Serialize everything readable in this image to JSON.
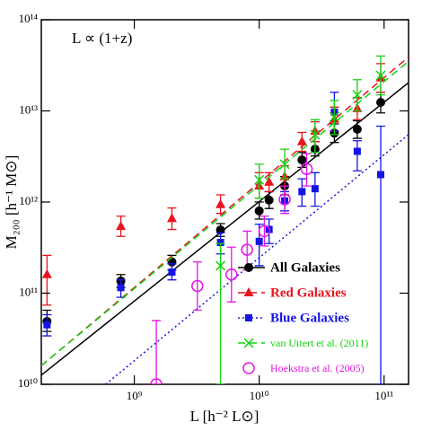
{
  "chart_data": {
    "type": "scatter",
    "annotation": "L ∝ (1+z)",
    "x_label": "L [h⁻² L⊙]",
    "y_label": "M₂₀₀ [h⁻¹ M⊙]",
    "log_x": true,
    "log_y": true,
    "xlim": [
      180000000.0,
      157000000000.0
    ],
    "ylim": [
      10000000000.0,
      100000000000000.0
    ],
    "xticks": [
      {
        "value": 1000000000.0,
        "label": "10⁹"
      },
      {
        "value": 10000000000.0,
        "label": "10¹⁰"
      },
      {
        "value": 100000000000.0,
        "label": "10¹¹"
      }
    ],
    "yticks": [
      {
        "value": 10000000000.0,
        "label": "10¹⁰"
      },
      {
        "value": 100000000000.0,
        "label": "10¹¹"
      },
      {
        "value": 1000000000000.0,
        "label": "10¹²"
      },
      {
        "value": 10000000000000.0,
        "label": "10¹³"
      },
      {
        "value": 100000000000000.0,
        "label": "10¹⁴"
      }
    ],
    "legend": "lower right",
    "series": [
      {
        "name": "All Galaxies",
        "color": "#000000",
        "marker": "circle",
        "line_style": "solid",
        "x": [
          200000000.0,
          780000000.0,
          2000000000.0,
          4900000000.0,
          10000000000.0,
          12000000000.0,
          16000000000.0,
          22000000000.0,
          28000000000.0,
          40000000000.0,
          61000000000.0,
          94000000000.0
        ],
        "values": [
          49000000000.0,
          136000000000.0,
          220000000000.0,
          495000000000.0,
          800000000000.0,
          1050000000000.0,
          1500000000000.0,
          2900000000000.0,
          3800000000000.0,
          5700000000000.0,
          6300000000000.0,
          12400000000000.0
        ],
        "yerr_low": [
          38000000000.0,
          115000000000.0,
          180000000000.0,
          420000000000.0,
          650000000000.0,
          850000000000.0,
          1200000000000.0,
          2400000000000.0,
          3200000000000.0,
          4500000000000.0,
          5000000000000.0,
          9500000000000.0
        ],
        "yerr_high": [
          65000000000.0,
          160000000000.0,
          260000000000.0,
          580000000000.0,
          1000000000000.0,
          1300000000000.0,
          1900000000000.0,
          3500000000000.0,
          4600000000000.0,
          7200000000000.0,
          7800000000000.0,
          16000000000000.0
        ],
        "fit": {
          "x": [
            180000000.0,
            157000000000.0
          ],
          "y": [
            12600000000.0,
            20400000000000.0
          ]
        }
      },
      {
        "name": "Red Galaxies",
        "color": "#e8141e",
        "marker": "triangle",
        "line_style": "dashed",
        "x": [
          200000000.0,
          780000000.0,
          2000000000.0,
          4900000000.0,
          10000000000.0,
          12000000000.0,
          16000000000.0,
          22000000000.0,
          28000000000.0,
          40000000000.0,
          61000000000.0,
          94000000000.0
        ],
        "values": [
          160000000000.0,
          540000000000.0,
          660000000000.0,
          940000000000.0,
          1500000000000.0,
          1650000000000.0,
          1900000000000.0,
          4600000000000.0,
          6000000000000.0,
          8100000000000.0,
          10600000000000.0,
          23000000000000.0
        ],
        "yerr_low": [
          74000000000.0,
          420000000000.0,
          500000000000.0,
          750000000000.0,
          1100000000000.0,
          1300000000000.0,
          1500000000000.0,
          3600000000000.0,
          4600000000000.0,
          6000000000000.0,
          8000000000000.0,
          16000000000000.0
        ],
        "yerr_high": [
          260000000000.0,
          700000000000.0,
          860000000000.0,
          1200000000000.0,
          2100000000000.0,
          2100000000000.0,
          2500000000000.0,
          5800000000000.0,
          7600000000000.0,
          11000000000000.0,
          14000000000000.0,
          33000000000000.0
        ],
        "fit": {
          "x": [
            180000000.0,
            157000000000.0
          ],
          "y": [
            16000000000.0,
            39000000000000.0
          ]
        }
      },
      {
        "name": "Blue Galaxies",
        "color": "#1414e6",
        "marker": "square",
        "line_style": "dotted",
        "x": [
          200000000.0,
          780000000.0,
          2000000000.0,
          4900000000.0,
          10000000000.0,
          12000000000.0,
          16000000000.0,
          22000000000.0,
          28000000000.0,
          40000000000.0,
          61000000000.0,
          94000000000.0
        ],
        "values": [
          45000000000.0,
          115000000000.0,
          170000000000.0,
          360000000000.0,
          370000000000.0,
          500000000000.0,
          1030000000000.0,
          1300000000000.0,
          1400000000000.0,
          9700000000000.0,
          3600000000000.0,
          2000000000000.0
        ],
        "yerr_low": [
          34000000000.0,
          90000000000.0,
          140000000000.0,
          270000000000.0,
          200000000000.0,
          350000000000.0,
          800000000000.0,
          900000000000.0,
          900000000000.0,
          6000000000000.0,
          2200000000000.0,
          10000000000.0
        ],
        "yerr_high": [
          58000000000.0,
          140000000000.0,
          210000000000.0,
          460000000000.0,
          570000000000.0,
          650000000000.0,
          1300000000000.0,
          1800000000000.0,
          2100000000000.0,
          16000000000000.0,
          4700000000000.0,
          6800000000000.0
        ],
        "fit": {
          "x": [
            590000000.0,
            157000000000.0
          ],
          "y": [
            10000000000.0,
            5500000000000.0
          ]
        }
      },
      {
        "name": "van Uitert et al. (2011)",
        "color": "#14d214",
        "marker": "x",
        "line_style": "dashed",
        "x": [
          4900000000.0,
          10000000000.0,
          16000000000.0,
          28000000000.0,
          40000000000.0,
          61000000000.0,
          94000000000.0
        ],
        "values": [
          200000000000.0,
          1750000000000.0,
          2600000000000.0,
          5500000000000.0,
          8600000000000.0,
          15000000000000.0,
          24500000000000.0
        ],
        "yerr_low": [
          10000000000.0,
          1100000000000.0,
          1800000000000.0,
          3500000000000.0,
          5500000000000.0,
          10000000000000.0,
          15000000000000.0
        ],
        "yerr_high": [
          350000000000.0,
          2600000000000.0,
          3800000000000.0,
          8000000000000.0,
          13000000000000.0,
          22000000000000.0,
          40000000000000.0
        ],
        "fit": {
          "x": [
            180000000.0,
            157000000000.0
          ],
          "y": [
            16000000000.0,
            35000000000000.0
          ]
        }
      },
      {
        "name": "Hoekstra et al. (2005)",
        "color": "#e614e6",
        "marker": "open-circle",
        "x": [
          1500000000.0,
          3200000000.0,
          6000000000.0,
          8000000000.0,
          11000000000.0,
          16000000000.0,
          24000000000.0
        ],
        "values": [
          10000000000.0,
          120000000000.0,
          160000000000.0,
          300000000000.0,
          480000000000.0,
          1070000000000.0,
          2300000000000.0
        ],
        "yerr_low": [
          10000000000.0,
          65000000000.0,
          80000000000.0,
          180000000000.0,
          330000000000.0,
          750000000000.0,
          1500000000000.0
        ],
        "yerr_high": [
          50000000000.0,
          220000000000.0,
          320000000000.0,
          480000000000.0,
          700000000000.0,
          1500000000000.0,
          3400000000000.0
        ]
      }
    ]
  }
}
